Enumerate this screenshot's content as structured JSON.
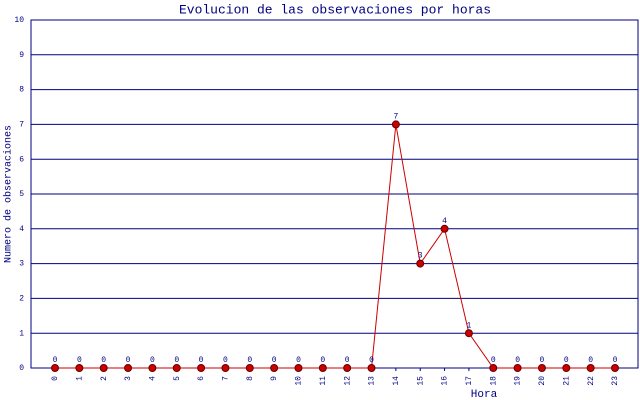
{
  "chart_data": {
    "type": "line",
    "title": "Evolucion de las observaciones por horas",
    "x_label": "Hora",
    "y_label": "Numero de observaciones",
    "categories": [
      "0",
      "1",
      "2",
      "3",
      "4",
      "5",
      "6",
      "7",
      "8",
      "9",
      "10",
      "11",
      "12",
      "13",
      "14",
      "15",
      "16",
      "17",
      "18",
      "19",
      "20",
      "21",
      "22",
      "23"
    ],
    "values": [
      0,
      0,
      0,
      0,
      0,
      0,
      0,
      0,
      0,
      0,
      0,
      0,
      0,
      0,
      7,
      3,
      4,
      1,
      0,
      0,
      0,
      0,
      0,
      0
    ],
    "color": "#cc0000",
    "ylim": [
      0,
      10
    ],
    "yticks": [
      0,
      1,
      2,
      3,
      4,
      5,
      6,
      7,
      8,
      9,
      10
    ],
    "grid": true
  }
}
